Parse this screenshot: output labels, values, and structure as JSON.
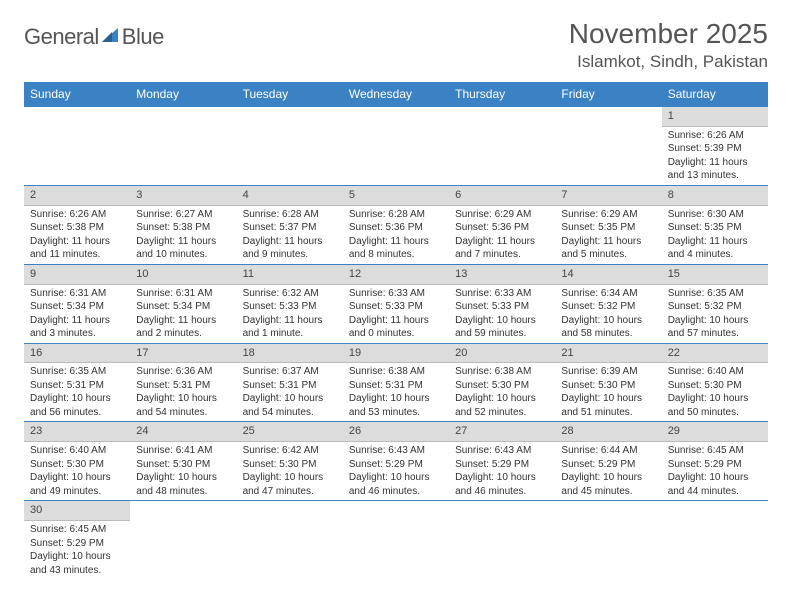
{
  "brand": {
    "part1": "General",
    "part2": "Blue"
  },
  "colors": {
    "accent": "#3b82c4",
    "dayBar": "#dcdcdc",
    "text": "#333"
  },
  "title": "November 2025",
  "location": "Islamkot, Sindh, Pakistan",
  "dayHeaders": [
    "Sunday",
    "Monday",
    "Tuesday",
    "Wednesday",
    "Thursday",
    "Friday",
    "Saturday"
  ],
  "weeks": [
    [
      {
        "n": "",
        "lines": []
      },
      {
        "n": "",
        "lines": []
      },
      {
        "n": "",
        "lines": []
      },
      {
        "n": "",
        "lines": []
      },
      {
        "n": "",
        "lines": []
      },
      {
        "n": "",
        "lines": []
      },
      {
        "n": "1",
        "lines": [
          "Sunrise: 6:26 AM",
          "Sunset: 5:39 PM",
          "Daylight: 11 hours and 13 minutes."
        ]
      }
    ],
    [
      {
        "n": "2",
        "lines": [
          "Sunrise: 6:26 AM",
          "Sunset: 5:38 PM",
          "Daylight: 11 hours and 11 minutes."
        ]
      },
      {
        "n": "3",
        "lines": [
          "Sunrise: 6:27 AM",
          "Sunset: 5:38 PM",
          "Daylight: 11 hours and 10 minutes."
        ]
      },
      {
        "n": "4",
        "lines": [
          "Sunrise: 6:28 AM",
          "Sunset: 5:37 PM",
          "Daylight: 11 hours and 9 minutes."
        ]
      },
      {
        "n": "5",
        "lines": [
          "Sunrise: 6:28 AM",
          "Sunset: 5:36 PM",
          "Daylight: 11 hours and 8 minutes."
        ]
      },
      {
        "n": "6",
        "lines": [
          "Sunrise: 6:29 AM",
          "Sunset: 5:36 PM",
          "Daylight: 11 hours and 7 minutes."
        ]
      },
      {
        "n": "7",
        "lines": [
          "Sunrise: 6:29 AM",
          "Sunset: 5:35 PM",
          "Daylight: 11 hours and 5 minutes."
        ]
      },
      {
        "n": "8",
        "lines": [
          "Sunrise: 6:30 AM",
          "Sunset: 5:35 PM",
          "Daylight: 11 hours and 4 minutes."
        ]
      }
    ],
    [
      {
        "n": "9",
        "lines": [
          "Sunrise: 6:31 AM",
          "Sunset: 5:34 PM",
          "Daylight: 11 hours and 3 minutes."
        ]
      },
      {
        "n": "10",
        "lines": [
          "Sunrise: 6:31 AM",
          "Sunset: 5:34 PM",
          "Daylight: 11 hours and 2 minutes."
        ]
      },
      {
        "n": "11",
        "lines": [
          "Sunrise: 6:32 AM",
          "Sunset: 5:33 PM",
          "Daylight: 11 hours and 1 minute."
        ]
      },
      {
        "n": "12",
        "lines": [
          "Sunrise: 6:33 AM",
          "Sunset: 5:33 PM",
          "Daylight: 11 hours and 0 minutes."
        ]
      },
      {
        "n": "13",
        "lines": [
          "Sunrise: 6:33 AM",
          "Sunset: 5:33 PM",
          "Daylight: 10 hours and 59 minutes."
        ]
      },
      {
        "n": "14",
        "lines": [
          "Sunrise: 6:34 AM",
          "Sunset: 5:32 PM",
          "Daylight: 10 hours and 58 minutes."
        ]
      },
      {
        "n": "15",
        "lines": [
          "Sunrise: 6:35 AM",
          "Sunset: 5:32 PM",
          "Daylight: 10 hours and 57 minutes."
        ]
      }
    ],
    [
      {
        "n": "16",
        "lines": [
          "Sunrise: 6:35 AM",
          "Sunset: 5:31 PM",
          "Daylight: 10 hours and 56 minutes."
        ]
      },
      {
        "n": "17",
        "lines": [
          "Sunrise: 6:36 AM",
          "Sunset: 5:31 PM",
          "Daylight: 10 hours and 54 minutes."
        ]
      },
      {
        "n": "18",
        "lines": [
          "Sunrise: 6:37 AM",
          "Sunset: 5:31 PM",
          "Daylight: 10 hours and 54 minutes."
        ]
      },
      {
        "n": "19",
        "lines": [
          "Sunrise: 6:38 AM",
          "Sunset: 5:31 PM",
          "Daylight: 10 hours and 53 minutes."
        ]
      },
      {
        "n": "20",
        "lines": [
          "Sunrise: 6:38 AM",
          "Sunset: 5:30 PM",
          "Daylight: 10 hours and 52 minutes."
        ]
      },
      {
        "n": "21",
        "lines": [
          "Sunrise: 6:39 AM",
          "Sunset: 5:30 PM",
          "Daylight: 10 hours and 51 minutes."
        ]
      },
      {
        "n": "22",
        "lines": [
          "Sunrise: 6:40 AM",
          "Sunset: 5:30 PM",
          "Daylight: 10 hours and 50 minutes."
        ]
      }
    ],
    [
      {
        "n": "23",
        "lines": [
          "Sunrise: 6:40 AM",
          "Sunset: 5:30 PM",
          "Daylight: 10 hours and 49 minutes."
        ]
      },
      {
        "n": "24",
        "lines": [
          "Sunrise: 6:41 AM",
          "Sunset: 5:30 PM",
          "Daylight: 10 hours and 48 minutes."
        ]
      },
      {
        "n": "25",
        "lines": [
          "Sunrise: 6:42 AM",
          "Sunset: 5:30 PM",
          "Daylight: 10 hours and 47 minutes."
        ]
      },
      {
        "n": "26",
        "lines": [
          "Sunrise: 6:43 AM",
          "Sunset: 5:29 PM",
          "Daylight: 10 hours and 46 minutes."
        ]
      },
      {
        "n": "27",
        "lines": [
          "Sunrise: 6:43 AM",
          "Sunset: 5:29 PM",
          "Daylight: 10 hours and 46 minutes."
        ]
      },
      {
        "n": "28",
        "lines": [
          "Sunrise: 6:44 AM",
          "Sunset: 5:29 PM",
          "Daylight: 10 hours and 45 minutes."
        ]
      },
      {
        "n": "29",
        "lines": [
          "Sunrise: 6:45 AM",
          "Sunset: 5:29 PM",
          "Daylight: 10 hours and 44 minutes."
        ]
      }
    ],
    [
      {
        "n": "30",
        "lines": [
          "Sunrise: 6:45 AM",
          "Sunset: 5:29 PM",
          "Daylight: 10 hours and 43 minutes."
        ]
      },
      {
        "n": "",
        "lines": []
      },
      {
        "n": "",
        "lines": []
      },
      {
        "n": "",
        "lines": []
      },
      {
        "n": "",
        "lines": []
      },
      {
        "n": "",
        "lines": []
      },
      {
        "n": "",
        "lines": []
      }
    ]
  ]
}
